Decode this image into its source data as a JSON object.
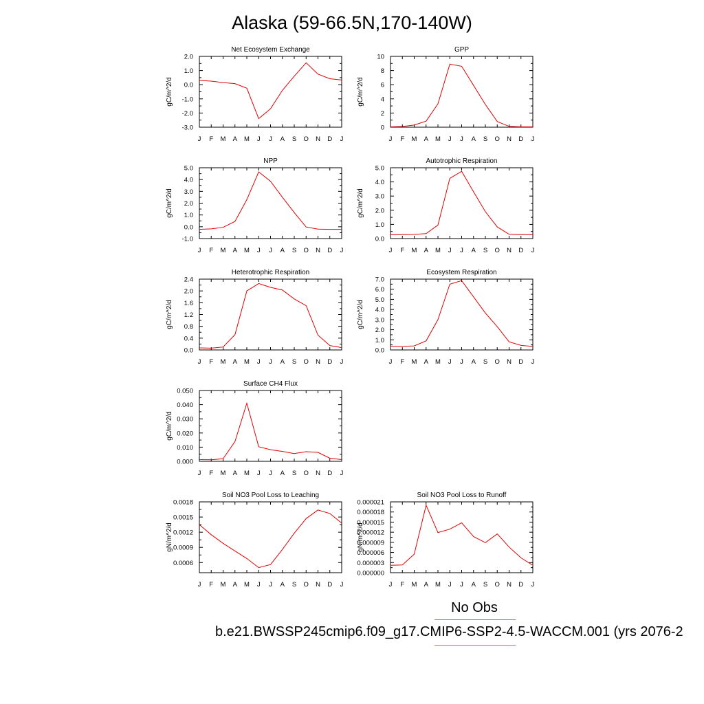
{
  "page": {
    "title": "Alaska (59-66.5N,170-140W)",
    "legend_title": "No Obs",
    "footer": "b.e21.BWSSP245cmip6.f09_g17.CMIP6-SSP2-4.5-WACCM.001 (yrs 2076-2",
    "legend_line_colors": [
      "#6666ee",
      "#ee6666"
    ]
  },
  "chart_data": [
    {
      "type": "line",
      "title": "Net Ecosystem Exchange",
      "ylabel": "gC/m^2/d",
      "x": [
        "J",
        "F",
        "M",
        "A",
        "M",
        "J",
        "J",
        "A",
        "S",
        "O",
        "N",
        "D",
        "J"
      ],
      "ylim": [
        -3.0,
        2.0
      ],
      "yticks": [
        -3.0,
        -2.0,
        -1.0,
        0.0,
        1.0,
        2.0
      ],
      "ytick_labels": [
        "-3.0",
        "-2.0",
        "-1.0",
        "0.0",
        "1.0",
        "2.0"
      ],
      "series": [
        {
          "values": [
            0.3,
            0.25,
            0.15,
            0.08,
            -0.25,
            -2.4,
            -1.7,
            -0.4,
            0.6,
            1.55,
            0.75,
            0.42,
            0.33
          ],
          "color": "#dd0000"
        }
      ]
    },
    {
      "type": "line",
      "title": "GPP",
      "ylabel": "gC/m^2/d",
      "x": [
        "J",
        "F",
        "M",
        "A",
        "M",
        "J",
        "J",
        "A",
        "S",
        "O",
        "N",
        "D",
        "J"
      ],
      "ylim": [
        0,
        10
      ],
      "yticks": [
        0,
        2,
        4,
        6,
        8,
        10
      ],
      "ytick_labels": [
        "0",
        "2",
        "4",
        "6",
        "8",
        "10"
      ],
      "series": [
        {
          "values": [
            0.05,
            0.1,
            0.3,
            0.85,
            3.3,
            8.9,
            8.6,
            5.9,
            3.2,
            0.8,
            0.12,
            0.05,
            0.05
          ],
          "color": "#dd0000"
        }
      ]
    },
    {
      "type": "line",
      "title": "NPP",
      "ylabel": "gC/m^2/d",
      "x": [
        "J",
        "F",
        "M",
        "A",
        "M",
        "J",
        "J",
        "A",
        "S",
        "O",
        "N",
        "D",
        "J"
      ],
      "ylim": [
        -1.0,
        5.0
      ],
      "yticks": [
        -1.0,
        0.0,
        1.0,
        2.0,
        3.0,
        4.0,
        5.0
      ],
      "ytick_labels": [
        "-1.0",
        "0.0",
        "1.0",
        "2.0",
        "3.0",
        "4.0",
        "5.0"
      ],
      "series": [
        {
          "values": [
            -0.22,
            -0.18,
            -0.05,
            0.45,
            2.3,
            4.65,
            3.85,
            2.5,
            1.2,
            -0.02,
            -0.2,
            -0.22,
            -0.22
          ],
          "color": "#dd0000"
        }
      ]
    },
    {
      "type": "line",
      "title": "Autotrophic Respiration",
      "ylabel": "gC/m^2/d",
      "x": [
        "J",
        "F",
        "M",
        "A",
        "M",
        "J",
        "J",
        "A",
        "S",
        "O",
        "N",
        "D",
        "J"
      ],
      "ylim": [
        0.0,
        5.0
      ],
      "yticks": [
        0.0,
        1.0,
        2.0,
        3.0,
        4.0,
        5.0
      ],
      "ytick_labels": [
        "0.0",
        "1.0",
        "2.0",
        "3.0",
        "4.0",
        "5.0"
      ],
      "series": [
        {
          "values": [
            0.27,
            0.28,
            0.29,
            0.35,
            0.95,
            4.25,
            4.75,
            3.3,
            1.9,
            0.82,
            0.3,
            0.28,
            0.27
          ],
          "color": "#dd0000"
        }
      ]
    },
    {
      "type": "line",
      "title": "Heterotrophic Respiration",
      "ylabel": "gC/m^2/d",
      "x": [
        "J",
        "F",
        "M",
        "A",
        "M",
        "J",
        "J",
        "A",
        "S",
        "O",
        "N",
        "D",
        "J"
      ],
      "ylim": [
        0.0,
        2.4
      ],
      "yticks": [
        0.0,
        0.4,
        0.8,
        1.2,
        1.6,
        2.0,
        2.4
      ],
      "ytick_labels": [
        "0.0",
        "0.4",
        "0.8",
        "1.2",
        "1.6",
        "2.0",
        "2.4"
      ],
      "series": [
        {
          "values": [
            0.07,
            0.06,
            0.1,
            0.52,
            2.0,
            2.25,
            2.12,
            2.03,
            1.73,
            1.5,
            0.5,
            0.15,
            0.08
          ],
          "color": "#dd0000"
        }
      ]
    },
    {
      "type": "line",
      "title": "Ecosystem Respiration",
      "ylabel": "gC/m^2/d",
      "x": [
        "J",
        "F",
        "M",
        "A",
        "M",
        "J",
        "J",
        "A",
        "S",
        "O",
        "N",
        "D",
        "J"
      ],
      "ylim": [
        0.0,
        7.0
      ],
      "yticks": [
        0.0,
        1.0,
        2.0,
        3.0,
        4.0,
        5.0,
        6.0,
        7.0
      ],
      "ytick_labels": [
        "0.0",
        "1.0",
        "2.0",
        "3.0",
        "4.0",
        "5.0",
        "6.0",
        "7.0"
      ],
      "series": [
        {
          "values": [
            0.35,
            0.35,
            0.4,
            0.9,
            3.0,
            6.5,
            6.85,
            5.25,
            3.65,
            2.3,
            0.8,
            0.45,
            0.35
          ],
          "color": "#dd0000"
        }
      ]
    },
    {
      "type": "line",
      "title": "Surface CH4 Flux",
      "ylabel": "gC/m^2/d",
      "x": [
        "J",
        "F",
        "M",
        "A",
        "M",
        "J",
        "J",
        "A",
        "S",
        "O",
        "N",
        "D",
        "J"
      ],
      "ylim": [
        0.0,
        0.05
      ],
      "yticks": [
        0.0,
        0.01,
        0.02,
        0.03,
        0.04,
        0.05
      ],
      "ytick_labels": [
        "0.000",
        "0.010",
        "0.020",
        "0.030",
        "0.040",
        "0.050"
      ],
      "series": [
        {
          "values": [
            0.0012,
            0.0011,
            0.0018,
            0.014,
            0.041,
            0.0103,
            0.0082,
            0.007,
            0.0055,
            0.0068,
            0.0063,
            0.0022,
            0.0012
          ],
          "color": "#dd0000"
        }
      ]
    },
    {
      "type": "line",
      "title": "Soil NO3 Pool Loss to Leaching",
      "ylabel": "gN/m^2/d",
      "x": [
        "J",
        "F",
        "M",
        "A",
        "M",
        "J",
        "J",
        "A",
        "S",
        "O",
        "N",
        "D",
        "J"
      ],
      "ylim": [
        0.0004,
        0.0018
      ],
      "yticks": [
        0.0006,
        0.0009,
        0.0012,
        0.0015,
        0.0018
      ],
      "ytick_labels": [
        "0.0006",
        "0.0009",
        "0.0012",
        "0.0015",
        "0.0018"
      ],
      "series": [
        {
          "values": [
            0.00135,
            0.00115,
            0.00098,
            0.00083,
            0.00068,
            0.0005,
            0.00056,
            0.00086,
            0.00118,
            0.00147,
            0.00164,
            0.00157,
            0.00138
          ],
          "color": "#dd0000"
        }
      ]
    },
    {
      "type": "line",
      "title": "Soil NO3 Pool Loss to Runoff",
      "ylabel": "gN/m^2/d",
      "x": [
        "J",
        "F",
        "M",
        "A",
        "M",
        "J",
        "J",
        "A",
        "S",
        "O",
        "N",
        "D",
        "J"
      ],
      "ylim": [
        0.0,
        2.1e-05
      ],
      "yticks": [
        0.0,
        3e-06,
        6e-06,
        9e-06,
        1.2e-05,
        1.5e-05,
        1.8e-05,
        2.1e-05
      ],
      "ytick_labels": [
        "0.000000",
        "0.000003",
        "0.000006",
        "0.000009",
        "0.000012",
        "0.000015",
        "0.000018",
        "0.000021"
      ],
      "series": [
        {
          "values": [
            2.2e-06,
            2.3e-06,
            5.5e-06,
            2e-05,
            1.19e-05,
            1.29e-05,
            1.48e-05,
            1.07e-05,
            8.9e-06,
            1.15e-05,
            7.6e-06,
            4.4e-06,
            2.2e-06
          ],
          "color": "#dd0000"
        }
      ]
    }
  ]
}
